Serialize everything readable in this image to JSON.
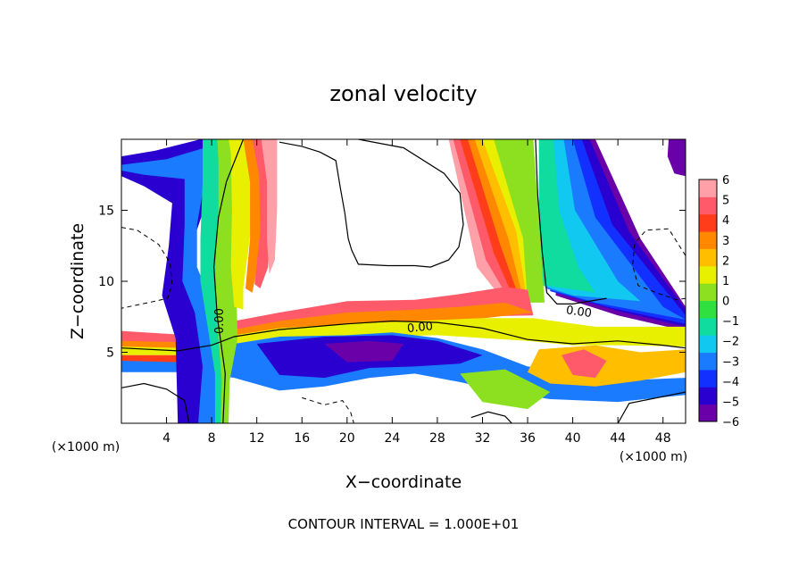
{
  "chart_data": {
    "type": "heatmap",
    "title": "zonal velocity",
    "xlabel": "X−coordinate",
    "ylabel": "Z−coordinate",
    "x_unit_left": "(×1000 m)",
    "x_unit_right": "(×1000 m)",
    "xlim": [
      0,
      50
    ],
    "ylim": [
      0,
      20
    ],
    "x_ticks": [
      4,
      8,
      12,
      16,
      20,
      24,
      28,
      32,
      36,
      40,
      44,
      48
    ],
    "y_ticks": [
      5,
      10,
      15
    ],
    "colorbar": {
      "min": -6,
      "max": 6,
      "ticks": [
        6,
        5,
        4,
        3,
        2,
        1,
        0,
        -1,
        -2,
        -3,
        -4,
        -5,
        -6
      ],
      "tick_labels": [
        "6",
        "5",
        "4",
        "3",
        "2",
        "1",
        "0",
        "−1",
        "−2",
        "−3",
        "−4",
        "−5",
        "−6"
      ],
      "colors": [
        "#6a00a8",
        "#2a00d0",
        "#1230ff",
        "#1a7bff",
        "#10c8f0",
        "#10dca0",
        "#30e040",
        "#8ce020",
        "#e8f000",
        "#ffbe00",
        "#ff8800",
        "#ff3d1a",
        "#ff5a6a",
        "#ffa0a8"
      ]
    },
    "contour_labels": [
      "0.00",
      "0.00",
      "0.00"
    ],
    "footer": "CONTOUR INTERVAL = 1.000E+01",
    "features": [
      {
        "region": "upper-right diagonal jet",
        "x_range": [
          39,
          50
        ],
        "z_range": [
          7,
          20
        ],
        "value_range": [
          -6,
          0
        ]
      },
      {
        "region": "vertical jet",
        "x_range": [
          30,
          39
        ],
        "z_range": [
          5,
          20
        ],
        "value_range": [
          -2,
          6
        ]
      },
      {
        "region": "horizontal shear layer",
        "x_range": [
          0,
          50
        ],
        "z_range": [
          3,
          9
        ],
        "value_range": [
          -6,
          6
        ]
      },
      {
        "region": "left rising plume",
        "x_range": [
          5,
          14
        ],
        "z_range": [
          0,
          20
        ],
        "value_range": [
          -6,
          6
        ]
      }
    ]
  }
}
